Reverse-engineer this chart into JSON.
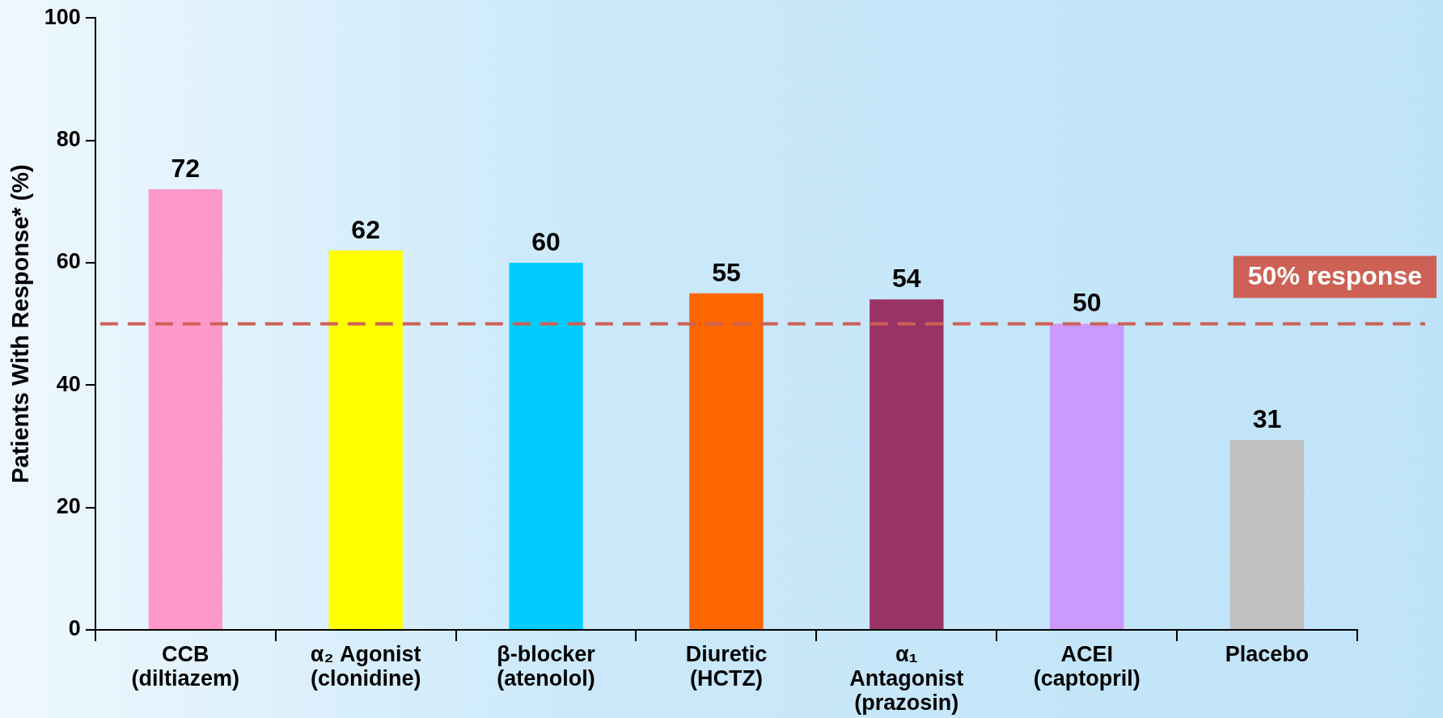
{
  "chart_data": {
    "type": "bar",
    "ylabel": "Patients With Response* (%)",
    "categories": [
      "CCB\n(diltiazem)",
      "α₂ Agonist\n(clonidine)",
      "β-blocker\n(atenolol)",
      "Diuretic\n(HCTZ)",
      "α₁\nAntagonist\n(prazosin)",
      "ACEI\n(captopril)",
      "Placebo"
    ],
    "values": [
      72,
      62,
      60,
      55,
      54,
      50,
      31
    ],
    "colors": [
      "#ff99cc",
      "#ffff00",
      "#00ccff",
      "#ff6600",
      "#993366",
      "#cc99ff",
      "#c0c0c0"
    ],
    "ylim": [
      0,
      100
    ],
    "yticks": [
      0,
      20,
      40,
      60,
      80,
      100
    ],
    "grid": false,
    "legend": false,
    "data_labels": true,
    "ref_lines": [
      {
        "axis": "y",
        "value": 50,
        "label": "50% response",
        "color": "#cd6155",
        "line_style": "dashed"
      }
    ]
  }
}
